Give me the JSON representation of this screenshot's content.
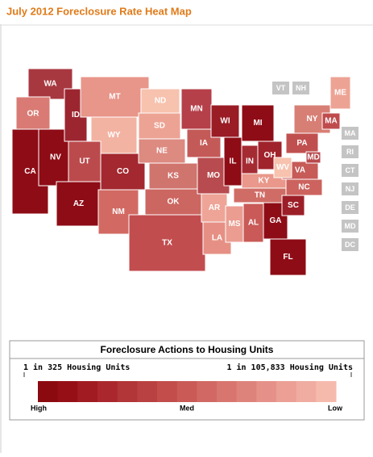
{
  "title": "July 2012 Foreclosure Rate Heat Map",
  "states": [
    {
      "label": "WA",
      "color": "#a83840"
    },
    {
      "label": "OR",
      "color": "#d97b74"
    },
    {
      "label": "CA",
      "color": "#8e0c16"
    },
    {
      "label": "NV",
      "color": "#8e0c16"
    },
    {
      "label": "ID",
      "color": "#9c2630"
    },
    {
      "label": "MT",
      "color": "#e8958a"
    },
    {
      "label": "WY",
      "color": "#f3b3a2"
    },
    {
      "label": "UT",
      "color": "#bb4a4c"
    },
    {
      "label": "AZ",
      "color": "#8e0c16"
    },
    {
      "label": "CO",
      "color": "#a3282f"
    },
    {
      "label": "NM",
      "color": "#d26a63"
    },
    {
      "label": "ND",
      "color": "#f7c2ae"
    },
    {
      "label": "SD",
      "color": "#eda394"
    },
    {
      "label": "NE",
      "color": "#dd8a80"
    },
    {
      "label": "KS",
      "color": "#d0746e"
    },
    {
      "label": "OK",
      "color": "#cc6660"
    },
    {
      "label": "TX",
      "color": "#c24d4f"
    },
    {
      "label": "MN",
      "color": "#b5404a"
    },
    {
      "label": "IA",
      "color": "#c45a58"
    },
    {
      "label": "MO",
      "color": "#b84b4f"
    },
    {
      "label": "AR",
      "color": "#eea597"
    },
    {
      "label": "LA",
      "color": "#e69085"
    },
    {
      "label": "WI",
      "color": "#9a1c25"
    },
    {
      "label": "IL",
      "color": "#8e0c16"
    },
    {
      "label": "MS",
      "color": "#eb9d91"
    },
    {
      "label": "AL",
      "color": "#c95a57"
    },
    {
      "label": "MI",
      "color": "#8e0c16"
    },
    {
      "label": "IN",
      "color": "#a52b33"
    },
    {
      "label": "OH",
      "color": "#a0222b"
    },
    {
      "label": "KY",
      "color": "#e9988b"
    },
    {
      "label": "TN",
      "color": "#d06c66"
    },
    {
      "label": "GA",
      "color": "#8e0c16"
    },
    {
      "label": "FL",
      "color": "#8e0c16"
    },
    {
      "label": "SC",
      "color": "#9c1f28"
    },
    {
      "label": "NC",
      "color": "#cc635e"
    },
    {
      "label": "VA",
      "color": "#c65b58"
    },
    {
      "label": "WV",
      "color": "#f7c2ae"
    },
    {
      "label": "PA",
      "color": "#c0504f"
    },
    {
      "label": "NY",
      "color": "#d87f75"
    },
    {
      "label": "ME",
      "color": "#eda394"
    },
    {
      "label": "MD",
      "color": "#b84a4e"
    },
    {
      "label": "MA",
      "color": "#bf4b4d"
    }
  ],
  "small_states": [
    "VT",
    "NH",
    "MA",
    "RI",
    "CT",
    "NJ",
    "DE",
    "MD",
    "DC"
  ],
  "legend": {
    "title": "Foreclosure Actions to Housing Units",
    "left_label": "1 in 325 Housing Units",
    "right_label": "1 in 105,833 Housing Units",
    "high": "High",
    "med": "Med",
    "low": "Low",
    "scale_colors": [
      "#8b0a0f",
      "#960f17",
      "#a11c22",
      "#aa282d",
      "#b23537",
      "#ba4141",
      "#c24d4b",
      "#c95a56",
      "#d16863",
      "#d8756f",
      "#de837c",
      "#e59189",
      "#eb9f95",
      "#f0aca1",
      "#f6baad"
    ]
  }
}
